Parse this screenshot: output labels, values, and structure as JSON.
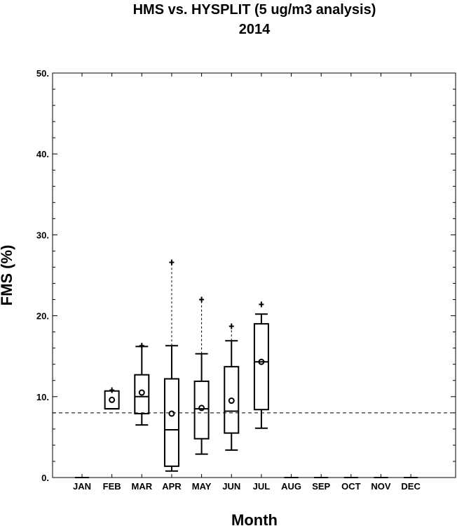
{
  "chart_data": {
    "type": "box",
    "title": "HMS vs. HYSPLIT (5 ug/m3 analysis)",
    "subtitle": "2014",
    "xlabel": "Month",
    "ylabel": "FMS (%)",
    "ylim": [
      0,
      50
    ],
    "yticks": [
      "0.",
      "10.",
      "20.",
      "30.",
      "40.",
      "50."
    ],
    "ytick_values": [
      0,
      10,
      20,
      30,
      40,
      50
    ],
    "categories": [
      "JAN",
      "FEB",
      "MAR",
      "APR",
      "MAY",
      "JUN",
      "JUL",
      "AUG",
      "SEP",
      "OCT",
      "NOV",
      "DEC"
    ],
    "reference_line": {
      "value": 8.0,
      "style": "dashed"
    },
    "grid": false,
    "boxes": [
      {
        "month": "JAN",
        "zero": true
      },
      {
        "month": "FEB",
        "whisker_low": 8.5,
        "q1": 8.5,
        "median": 8.5,
        "q3": 10.7,
        "whisker_high": 10.7,
        "mean": 9.6,
        "outliers": [
          10.8
        ]
      },
      {
        "month": "MAR",
        "whisker_low": 6.5,
        "q1": 7.9,
        "median": 10.0,
        "q3": 12.7,
        "whisker_high": 16.2,
        "mean": 10.5,
        "outliers": [
          16.3
        ]
      },
      {
        "month": "APR",
        "whisker_low": 0.8,
        "q1": 1.4,
        "median": 5.9,
        "q3": 12.2,
        "whisker_high": 16.3,
        "mean": 7.9,
        "outliers": [
          26.6
        ],
        "dashed_to_outlier": true
      },
      {
        "month": "MAY",
        "whisker_low": 2.9,
        "q1": 4.8,
        "median": 8.5,
        "q3": 11.9,
        "whisker_high": 15.3,
        "mean": 8.6,
        "outliers": [
          22.0
        ],
        "dashed_to_outlier": true
      },
      {
        "month": "JUN",
        "whisker_low": 3.4,
        "q1": 5.5,
        "median": 8.2,
        "q3": 13.7,
        "whisker_high": 16.9,
        "mean": 9.5,
        "outliers": [
          18.7
        ],
        "dashed_to_outlier": true
      },
      {
        "month": "JUL",
        "whisker_low": 6.1,
        "q1": 8.4,
        "median": 14.3,
        "q3": 19.0,
        "whisker_high": 20.2,
        "mean": 14.3,
        "outliers": [
          21.4
        ]
      },
      {
        "month": "AUG",
        "zero": true
      },
      {
        "month": "SEP",
        "zero": true
      },
      {
        "month": "OCT",
        "zero": true
      },
      {
        "month": "NOV",
        "zero": true
      },
      {
        "month": "DEC",
        "zero": true
      }
    ]
  }
}
